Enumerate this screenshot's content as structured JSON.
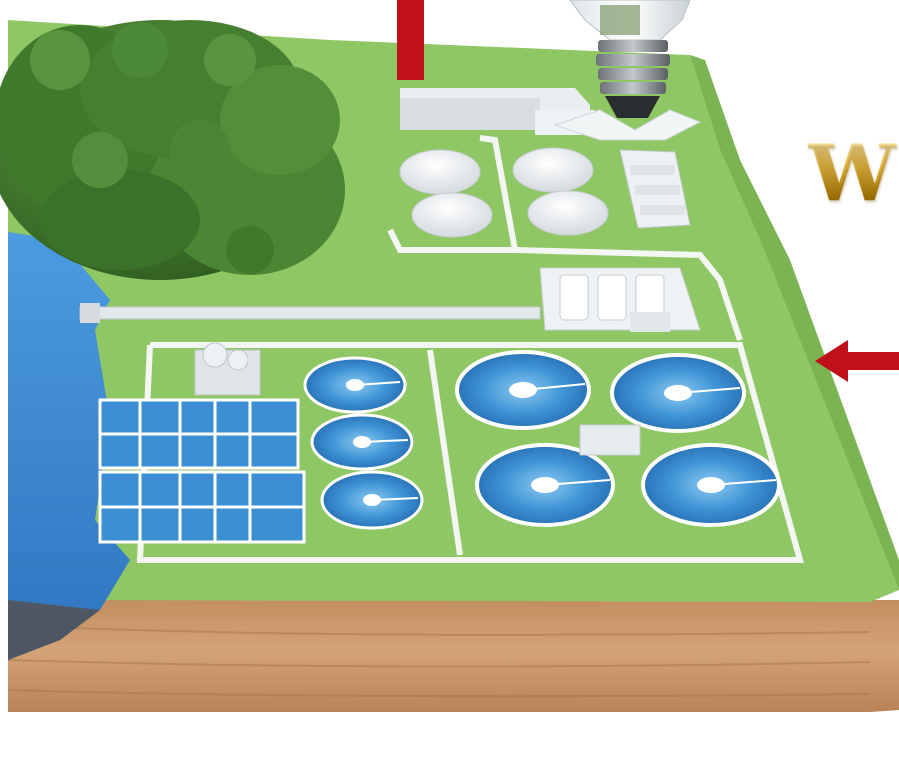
{
  "overlay": {
    "letter": "W"
  },
  "colors": {
    "grass": "#8fc765",
    "grass_dark": "#6aa84f",
    "water": "#3f8fd6",
    "tank_water": "#3b8fd0",
    "soil": "#c8956a",
    "arrow": "#c0101a",
    "path": "#f4f6f3",
    "forest": "#3f7a2c"
  },
  "icons": [
    "lightbulb-icon",
    "left-arrow-icon",
    "down-arrow-icon"
  ]
}
